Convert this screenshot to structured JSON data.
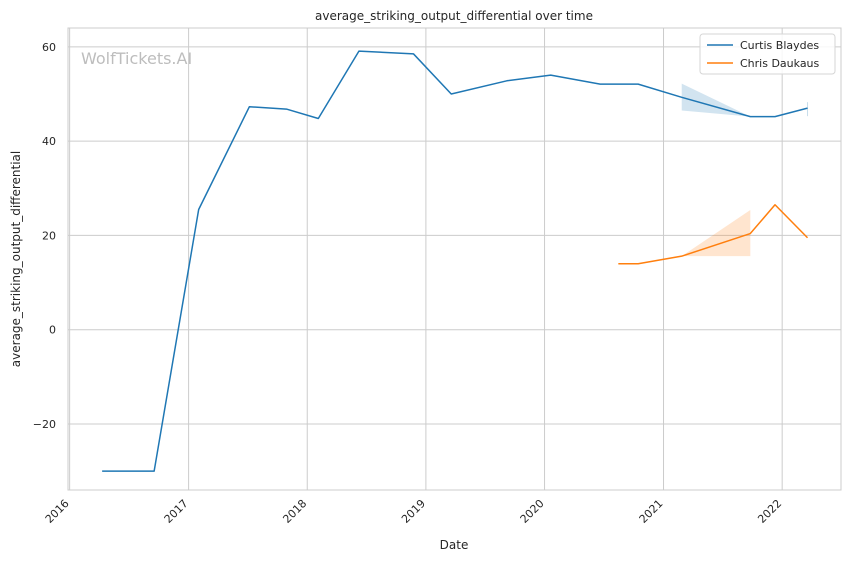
{
  "chart_data": {
    "type": "line",
    "title": "average_striking_output_differential over time",
    "xlabel": "Date",
    "ylabel": "average_striking_output_differential",
    "xlim": [
      "2015-12-27",
      "2022-07-01"
    ],
    "ylim": [
      -34,
      64
    ],
    "x_ticks": [
      "2016-01-01",
      "2017-01-01",
      "2018-01-01",
      "2019-01-01",
      "2020-01-01",
      "2021-01-01",
      "2022-01-01"
    ],
    "x_tick_labels": [
      "2016",
      "2017",
      "2018",
      "2019",
      "2020",
      "2021",
      "2022"
    ],
    "y_ticks": [
      -20,
      0,
      20,
      40,
      60
    ],
    "y_tick_labels": [
      "−20",
      "0",
      "20",
      "40",
      "60"
    ],
    "grid": true,
    "legend": "top-right",
    "watermark": "WolfTickets.AI",
    "series": [
      {
        "name": "Curtis Blaydes",
        "color": "#1f77b4",
        "points": [
          [
            "2016-04-10",
            -30
          ],
          [
            "2016-09-17",
            -30
          ],
          [
            "2017-02-01",
            25.5
          ],
          [
            "2017-07-07",
            47.3
          ],
          [
            "2017-10-29",
            46.8
          ],
          [
            "2018-02-04",
            44.8
          ],
          [
            "2018-06-09",
            59.1
          ],
          [
            "2018-11-24",
            58.5
          ],
          [
            "2019-03-20",
            50.0
          ],
          [
            "2019-09-07",
            52.8
          ],
          [
            "2020-01-20",
            54.0
          ],
          [
            "2020-06-20",
            52.1
          ],
          [
            "2020-10-15",
            52.1
          ],
          [
            "2021-02-26",
            49.3
          ],
          [
            "2021-09-25",
            45.2
          ],
          [
            "2021-12-10",
            45.2
          ],
          [
            "2022-03-20",
            47.0
          ]
        ],
        "band": [
          [
            "2021-02-26",
            46.5,
            52.2
          ],
          [
            "2021-09-25",
            45.2,
            45.2
          ]
        ]
      },
      {
        "name": "Chris Daukaus",
        "color": "#ff7f0e",
        "points": [
          [
            "2020-08-15",
            14.0
          ],
          [
            "2020-10-15",
            14.0
          ],
          [
            "2021-02-26",
            15.6
          ],
          [
            "2021-09-25",
            20.4
          ],
          [
            "2021-12-10",
            26.5
          ],
          [
            "2022-03-20",
            19.5
          ]
        ],
        "band": [
          [
            "2021-02-26",
            15.6,
            15.6
          ],
          [
            "2021-09-25",
            15.6,
            25.4
          ]
        ]
      }
    ]
  }
}
